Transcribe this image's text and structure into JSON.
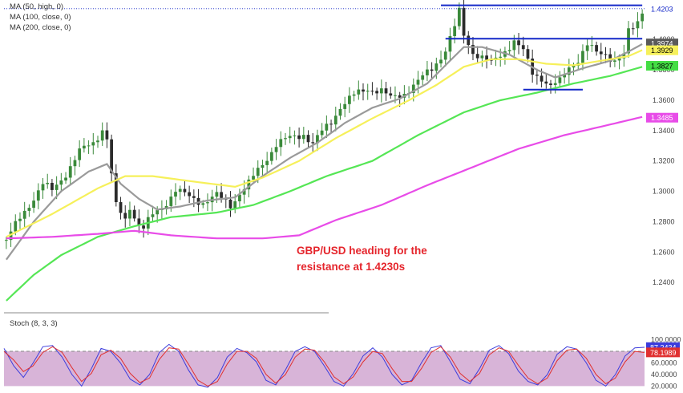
{
  "legend": {
    "ma50": "MA (50, high, 0)",
    "ma100": "MA (100, close, 0)",
    "ma200": "MA (200, close, 0)"
  },
  "annotation": {
    "line1": "GBP/USD heading for the",
    "line2": "resistance at 1.4230s"
  },
  "colors": {
    "bull": "#3a8a3a",
    "bear": "#2b2b2b",
    "ma_yellow": "#f6f05a",
    "ma_gray": "#9a9a9a",
    "ma_green": "#55e655",
    "ma_magenta": "#e84ce8",
    "level_lines": "#1428c8",
    "stoch_bg": "#d8b4d8",
    "stoch_k": "#3c3cdc",
    "stoch_d": "#e03030",
    "annotation": "#e5252c"
  },
  "chart_data": [
    {
      "type": "candlestick",
      "title": "",
      "ylim": [
        1.22,
        1.426
      ],
      "yticks": [
        "1.4203",
        "1.4000",
        "1.3800",
        "1.3600",
        "1.3400",
        "1.3200",
        "1.3000",
        "1.2800",
        "1.2600",
        "1.2400"
      ],
      "price_badges": [
        {
          "label": "1.4203",
          "value": 1.4203,
          "bg": "#ffffff",
          "color": "#1428c8"
        },
        {
          "label": "1.3974",
          "value": 1.3974,
          "bg": "#5a5a5a",
          "color": "#ffffff"
        },
        {
          "label": "1.3929",
          "value": 1.3929,
          "bg": "#f6f05a",
          "color": "#000000"
        },
        {
          "label": "1.3827",
          "value": 1.3827,
          "bg": "#44dd44",
          "color": "#000000"
        },
        {
          "label": "1.3485",
          "value": 1.3485,
          "bg": "#e84ce8",
          "color": "#ffffff"
        }
      ],
      "close_path": [
        [
          0,
          1.268
        ],
        [
          3,
          1.282
        ],
        [
          6,
          1.296
        ],
        [
          8,
          1.305
        ],
        [
          10,
          1.3
        ],
        [
          13,
          1.312
        ],
        [
          16,
          1.326
        ],
        [
          19,
          1.332
        ],
        [
          21,
          1.341
        ],
        [
          22,
          1.335
        ],
        [
          23,
          1.311
        ],
        [
          24,
          1.29
        ],
        [
          26,
          1.281
        ],
        [
          27,
          1.29
        ],
        [
          29,
          1.278
        ],
        [
          30,
          1.276
        ],
        [
          32,
          1.284
        ],
        [
          34,
          1.289
        ],
        [
          37,
          1.301
        ],
        [
          40,
          1.296
        ],
        [
          43,
          1.293
        ],
        [
          46,
          1.297
        ],
        [
          49,
          1.291
        ],
        [
          51,
          1.299
        ],
        [
          53,
          1.305
        ],
        [
          56,
          1.318
        ],
        [
          59,
          1.331
        ],
        [
          62,
          1.335
        ],
        [
          65,
          1.338
        ],
        [
          67,
          1.331
        ],
        [
          69,
          1.339
        ],
        [
          71,
          1.346
        ],
        [
          73,
          1.356
        ],
        [
          76,
          1.363
        ],
        [
          79,
          1.368
        ],
        [
          82,
          1.366
        ],
        [
          84,
          1.361
        ],
        [
          87,
          1.365
        ],
        [
          90,
          1.372
        ],
        [
          93,
          1.381
        ],
        [
          96,
          1.393
        ],
        [
          98,
          1.408
        ],
        [
          99,
          1.418
        ],
        [
          100,
          1.403
        ],
        [
          102,
          1.392
        ],
        [
          104,
          1.388
        ],
        [
          106,
          1.384
        ],
        [
          109,
          1.393
        ],
        [
          111,
          1.399
        ],
        [
          113,
          1.392
        ],
        [
          115,
          1.378
        ],
        [
          117,
          1.375
        ],
        [
          119,
          1.369
        ],
        [
          121,
          1.372
        ],
        [
          123,
          1.382
        ],
        [
          125,
          1.387
        ],
        [
          127,
          1.396
        ],
        [
          129,
          1.391
        ],
        [
          131,
          1.391
        ],
        [
          133,
          1.386
        ],
        [
          135,
          1.389
        ],
        [
          136,
          1.405
        ],
        [
          137,
          1.408
        ],
        [
          138,
          1.412
        ],
        [
          139,
          1.42
        ]
      ],
      "ma_series": [
        {
          "key": "ma50_gray",
          "color": "#9a9a9a",
          "points": [
            [
              0,
              1.255
            ],
            [
              6,
              1.28
            ],
            [
              12,
              1.3
            ],
            [
              18,
              1.313
            ],
            [
              22,
              1.318
            ],
            [
              25,
              1.305
            ],
            [
              29,
              1.295
            ],
            [
              33,
              1.288
            ],
            [
              38,
              1.29
            ],
            [
              44,
              1.294
            ],
            [
              50,
              1.296
            ],
            [
              56,
              1.31
            ],
            [
              62,
              1.322
            ],
            [
              68,
              1.332
            ],
            [
              74,
              1.345
            ],
            [
              80,
              1.355
            ],
            [
              86,
              1.361
            ],
            [
              92,
              1.371
            ],
            [
              96,
              1.383
            ],
            [
              100,
              1.395
            ],
            [
              104,
              1.395
            ],
            [
              110,
              1.39
            ],
            [
              116,
              1.38
            ],
            [
              120,
              1.375
            ],
            [
              126,
              1.381
            ],
            [
              132,
              1.386
            ],
            [
              136,
              1.392
            ],
            [
              139,
              1.397
            ]
          ]
        },
        {
          "key": "ma100_yellow",
          "color": "#f6f05a",
          "points": [
            [
              0,
              1.27
            ],
            [
              10,
              1.285
            ],
            [
              20,
              1.302
            ],
            [
              26,
              1.31
            ],
            [
              32,
              1.31
            ],
            [
              42,
              1.306
            ],
            [
              50,
              1.303
            ],
            [
              56,
              1.309
            ],
            [
              64,
              1.32
            ],
            [
              72,
              1.335
            ],
            [
              80,
              1.348
            ],
            [
              88,
              1.36
            ],
            [
              94,
              1.37
            ],
            [
              100,
              1.382
            ],
            [
              106,
              1.387
            ],
            [
              112,
              1.387
            ],
            [
              118,
              1.384
            ],
            [
              124,
              1.383
            ],
            [
              130,
              1.386
            ],
            [
              136,
              1.389
            ],
            [
              139,
              1.393
            ]
          ]
        },
        {
          "key": "ma200_green",
          "color": "#55e655",
          "points": [
            [
              0,
              1.228
            ],
            [
              6,
              1.245
            ],
            [
              12,
              1.258
            ],
            [
              20,
              1.27
            ],
            [
              28,
              1.277
            ],
            [
              36,
              1.283
            ],
            [
              46,
              1.286
            ],
            [
              54,
              1.291
            ],
            [
              62,
              1.3
            ],
            [
              70,
              1.31
            ],
            [
              80,
              1.32
            ],
            [
              90,
              1.337
            ],
            [
              100,
              1.352
            ],
            [
              108,
              1.36
            ],
            [
              116,
              1.365
            ],
            [
              124,
              1.371
            ],
            [
              132,
              1.376
            ],
            [
              139,
              1.382
            ]
          ]
        },
        {
          "key": "ma_magenta",
          "color": "#e84ce8",
          "points": [
            [
              0,
              1.269
            ],
            [
              10,
              1.27
            ],
            [
              20,
              1.272
            ],
            [
              28,
              1.274
            ],
            [
              36,
              1.271
            ],
            [
              46,
              1.269
            ],
            [
              56,
              1.269
            ],
            [
              64,
              1.271
            ],
            [
              72,
              1.281
            ],
            [
              82,
              1.291
            ],
            [
              92,
              1.304
            ],
            [
              102,
              1.316
            ],
            [
              112,
              1.328
            ],
            [
              122,
              1.337
            ],
            [
              132,
              1.344
            ],
            [
              139,
              1.349
            ]
          ]
        }
      ],
      "levels": [
        {
          "value": 1.4225,
          "from": 95,
          "to": 139
        },
        {
          "value": 1.4005,
          "from": 96,
          "to": 139
        },
        {
          "value": 1.367,
          "from": 113,
          "to": 126
        }
      ]
    },
    {
      "type": "line",
      "title": "Stoch (8, 3, 3)",
      "ylim": [
        15,
        105
      ],
      "yticks": [
        "100.0000",
        "80.0000",
        "60.0000",
        "40.0000",
        "20.0000"
      ],
      "band": [
        20,
        80
      ],
      "series": [
        {
          "key": "k",
          "color": "#3c3cdc",
          "values": [
            85,
            55,
            35,
            60,
            88,
            90,
            70,
            40,
            20,
            50,
            85,
            80,
            60,
            32,
            22,
            40,
            78,
            92,
            80,
            48,
            22,
            18,
            35,
            70,
            85,
            78,
            62,
            30,
            22,
            48,
            80,
            88,
            80,
            55,
            28,
            20,
            42,
            72,
            86,
            70,
            40,
            22,
            30,
            60,
            86,
            90,
            62,
            32,
            24,
            50,
            82,
            90,
            76,
            46,
            28,
            22,
            40,
            75,
            88,
            84,
            60,
            30,
            20,
            40,
            72,
            86,
            87
          ]
        },
        {
          "key": "d",
          "color": "#e03030",
          "values": [
            80,
            65,
            45,
            55,
            78,
            88,
            78,
            52,
            28,
            42,
            74,
            82,
            68,
            42,
            26,
            34,
            66,
            86,
            84,
            58,
            30,
            20,
            28,
            58,
            80,
            80,
            68,
            40,
            25,
            40,
            70,
            84,
            82,
            62,
            36,
            24,
            36,
            62,
            80,
            76,
            50,
            28,
            28,
            50,
            78,
            88,
            70,
            42,
            28,
            42,
            74,
            86,
            80,
            56,
            34,
            24,
            34,
            64,
            82,
            84,
            68,
            40,
            24,
            34,
            62,
            80,
            78
          ]
        }
      ],
      "badges": [
        {
          "label": "87.2434",
          "value": 87.2434,
          "bg": "#3c3cdc",
          "color": "#ffffff"
        },
        {
          "label": "78.1989",
          "value": 78.1989,
          "bg": "#e03030",
          "color": "#ffffff"
        }
      ]
    }
  ]
}
